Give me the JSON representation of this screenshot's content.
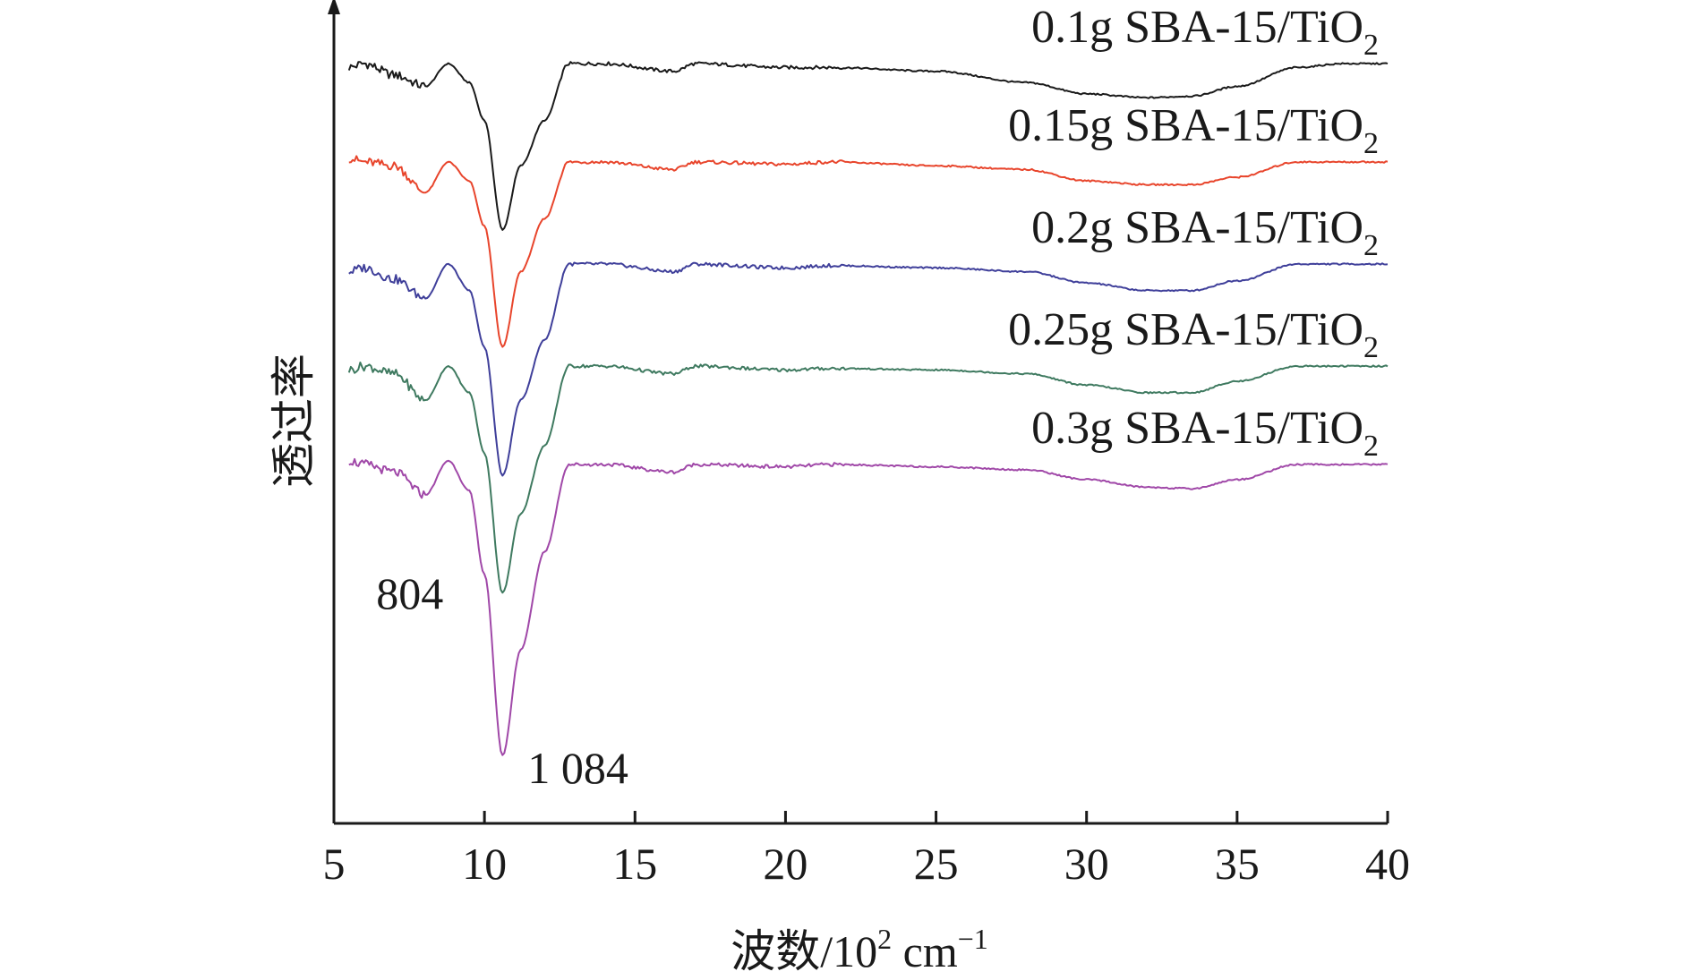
{
  "chart_data": {
    "type": "line",
    "title": "",
    "xlabel": "波数/10² cm⁻¹",
    "xlabel_parts": {
      "main": "波数/10",
      "sup": "2",
      "unit": " cm",
      "unit_sup": "−1"
    },
    "ylabel": "透过率",
    "xlim": [
      5,
      40
    ],
    "x_ticks": [
      "5",
      "10",
      "15",
      "20",
      "25",
      "30",
      "35",
      "40"
    ],
    "y_ticks_shown": false,
    "grid": false,
    "legend_placement": "inline-right-of-each-curve",
    "annotations": [
      {
        "text": "804",
        "x": 8.04
      },
      {
        "text": "1 084",
        "x": 10.84
      }
    ],
    "series": [
      {
        "name": "0.1g SBA-15/TiO2",
        "label_main": "0.1g SBA-15/TiO",
        "label_sub": "2",
        "color": "#1a1a1a",
        "x": [
          5.5,
          6.0,
          7.0,
          8.04,
          8.8,
          9.5,
          10.0,
          10.6,
          11.2,
          12.0,
          12.8,
          14.0,
          16.3,
          17.0,
          20.0,
          21.5,
          25.0,
          28.0,
          30.0,
          32.0,
          33.5,
          35.0,
          37.0,
          38.5,
          40.0
        ],
        "values": [
          97.0,
          97.5,
          96.0,
          94.5,
          97.5,
          95.0,
          90.0,
          75.5,
          84.0,
          90.0,
          97.5,
          97.5,
          96.5,
          97.5,
          97.0,
          97.0,
          96.5,
          95.0,
          93.5,
          93.0,
          93.2,
          94.5,
          97.0,
          97.5,
          97.5
        ]
      },
      {
        "name": "0.15g SBA-15/TiO2",
        "label_main": "0.15g SBA-15/TiO",
        "label_sub": "2",
        "color": "#e8452c",
        "x": [
          5.5,
          6.0,
          7.0,
          8.04,
          8.8,
          9.5,
          10.0,
          10.6,
          11.2,
          12.0,
          12.8,
          14.0,
          16.3,
          17.0,
          20.0,
          21.5,
          25.0,
          28.0,
          30.0,
          32.0,
          33.5,
          35.0,
          37.0,
          38.5,
          40.0
        ],
        "values": [
          85.0,
          84.5,
          84.0,
          80.5,
          84.5,
          82.0,
          76.0,
          60.0,
          70.0,
          77.0,
          84.5,
          84.5,
          83.5,
          84.5,
          84.2,
          84.5,
          84.0,
          83.5,
          82.0,
          81.5,
          81.5,
          82.5,
          84.5,
          84.5,
          84.5
        ]
      },
      {
        "name": "0.2g SBA-15/TiO2",
        "label_main": "0.2g SBA-15/TiO",
        "label_sub": "2",
        "color": "#3f3f9a",
        "x": [
          5.5,
          6.0,
          7.0,
          8.04,
          8.8,
          9.5,
          10.0,
          10.6,
          11.2,
          12.0,
          12.8,
          14.0,
          16.3,
          17.0,
          20.0,
          21.5,
          25.0,
          28.0,
          30.0,
          32.0,
          33.5,
          35.0,
          37.0,
          38.5,
          40.0
        ],
        "values": [
          70.0,
          70.5,
          69.0,
          66.5,
          71.0,
          67.5,
          60.0,
          43.0,
          53.0,
          61.0,
          71.0,
          71.0,
          70.0,
          71.0,
          70.5,
          70.8,
          70.5,
          70.0,
          68.5,
          67.5,
          67.5,
          68.8,
          71.0,
          71.0,
          71.0
        ]
      },
      {
        "name": "0.25g SBA-15/TiO2",
        "label_main": "0.25g SBA-15/TiO",
        "label_sub": "2",
        "color": "#3f7a60",
        "x": [
          5.5,
          6.0,
          7.0,
          8.04,
          8.8,
          9.5,
          10.0,
          10.6,
          11.2,
          12.0,
          12.8,
          14.0,
          16.3,
          17.0,
          20.0,
          21.5,
          25.0,
          28.0,
          30.0,
          32.0,
          33.5,
          35.0,
          37.0,
          38.5,
          40.0
        ],
        "values": [
          57.0,
          57.5,
          56.5,
          53.0,
          57.5,
          54.0,
          46.0,
          27.5,
          38.0,
          47.0,
          57.5,
          57.5,
          56.5,
          57.5,
          57.0,
          57.2,
          57.0,
          56.5,
          55.0,
          54.0,
          54.0,
          55.5,
          57.5,
          57.5,
          57.5
        ]
      },
      {
        "name": "0.3g SBA-15/TiO2",
        "label_main": "0.3g SBA-15/TiO",
        "label_sub": "2",
        "color": "#a048a8",
        "x": [
          5.5,
          6.0,
          7.0,
          8.04,
          8.8,
          9.5,
          10.0,
          10.6,
          11.2,
          12.0,
          12.8,
          14.0,
          16.3,
          17.0,
          20.0,
          21.5,
          25.0,
          28.0,
          30.0,
          32.0,
          33.5,
          35.0,
          37.0,
          38.5,
          40.0
        ],
        "values": [
          45.0,
          44.5,
          43.5,
          40.5,
          45.0,
          41.0,
          30.0,
          6.0,
          20.0,
          33.0,
          44.5,
          44.5,
          43.5,
          44.5,
          44.2,
          44.5,
          44.2,
          43.8,
          42.5,
          41.5,
          41.3,
          42.5,
          44.5,
          44.5,
          44.5
        ]
      }
    ]
  }
}
